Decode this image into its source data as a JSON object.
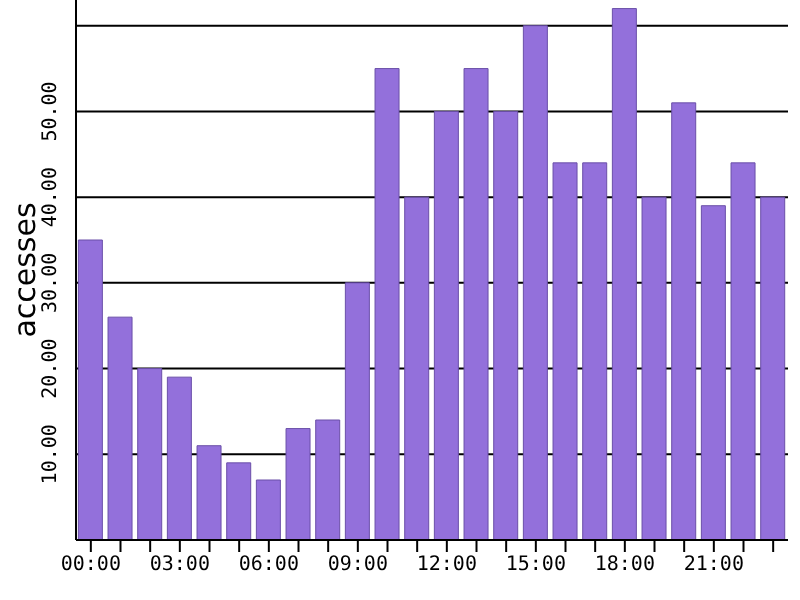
{
  "chart_data": {
    "type": "bar",
    "ylabel": "accesses",
    "categories": [
      "00:00",
      null,
      null,
      "03:00",
      null,
      null,
      "06:00",
      null,
      null,
      "09:00",
      null,
      null,
      "12:00",
      null,
      null,
      "15:00",
      null,
      null,
      "18:00",
      null,
      null,
      "21:00",
      null,
      null
    ],
    "values": [
      35,
      26,
      20,
      19,
      11,
      9,
      7,
      13,
      14,
      30,
      55,
      40,
      50,
      55,
      50,
      60,
      44,
      44,
      62,
      40,
      51,
      39,
      44,
      40
    ],
    "color": "#9370db",
    "ylim": [
      0,
      63
    ],
    "yticks": [
      {
        "value": 0,
        "label": null
      },
      {
        "value": 10,
        "label": "10.00"
      },
      {
        "value": 20,
        "label": "20.00"
      },
      {
        "value": 30,
        "label": "30.00"
      },
      {
        "value": 40,
        "label": "40.00"
      },
      {
        "value": 50,
        "label": "50.00"
      },
      {
        "value": 60,
        "label": null
      }
    ],
    "grid": "y"
  }
}
